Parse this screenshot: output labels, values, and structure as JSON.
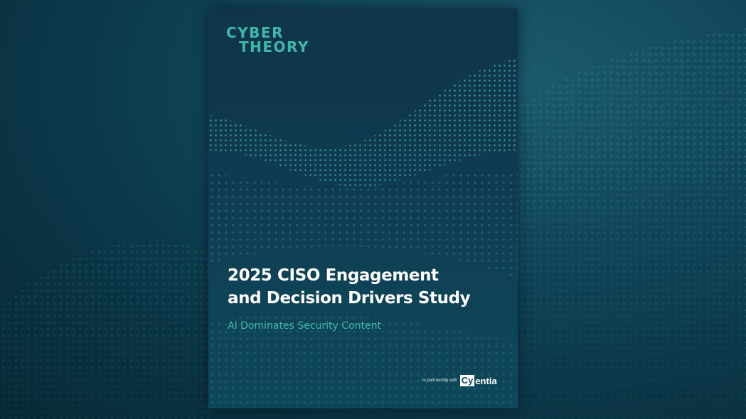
{
  "cover": {
    "logo_line1": "CYBER",
    "logo_line2": "THEORY",
    "title_line1": "2025 CISO Engagement",
    "title_line2": "and Decision Drivers Study",
    "subtitle": "AI Dominates Security Content",
    "partner_label": "in partnership with",
    "partner_logo_box": "Cy",
    "partner_logo_rest": "entia"
  },
  "colors": {
    "accent": "#3fb8a8",
    "background": "#0f4356",
    "cover": "#0f3b50"
  },
  "icons": {
    "background": "particle-wave-pattern",
    "cover_art": "particle-wave-pattern"
  }
}
